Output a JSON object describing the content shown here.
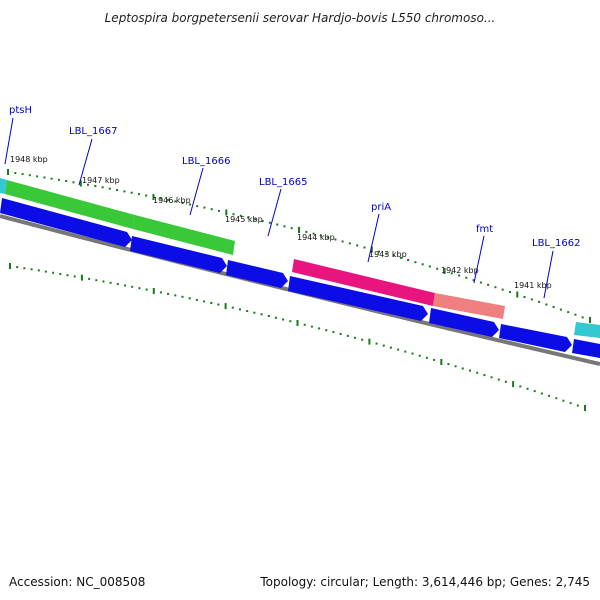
{
  "title": "Leptospira borgpetersenii serovar Hardjo-bovis L550 chromoso...",
  "footer": {
    "accession": "Accession: NC_008508",
    "summary": "Topology: circular; Length: 3,614,446 bp; Genes: 2,745"
  },
  "colors": {
    "cds_forward": "#38c838",
    "cds_reverse": "#0c0ce6",
    "cyan_feature": "#33c9d0",
    "pink_feature": "#e8157e",
    "salmon_feature": "#f08080",
    "backbone": "#777777",
    "tick": "#1a7a1a",
    "label": "#0000cc"
  },
  "kbp_ticks": [
    {
      "text": "1948 kbp"
    },
    {
      "text": "1947 kbp"
    },
    {
      "text": "1946 kbp"
    },
    {
      "text": "1945 kbp"
    },
    {
      "text": "1944 kbp"
    },
    {
      "text": "1943 kbp"
    },
    {
      "text": "1942 kbp"
    },
    {
      "text": "1941 kbp"
    }
  ],
  "gene_labels": [
    {
      "text": "ptsH"
    },
    {
      "text": "LBL_1667"
    },
    {
      "text": "LBL_1666"
    },
    {
      "text": "LBL_1665"
    },
    {
      "text": "priA"
    },
    {
      "text": "fmt"
    },
    {
      "text": "LBL_1662"
    }
  ]
}
